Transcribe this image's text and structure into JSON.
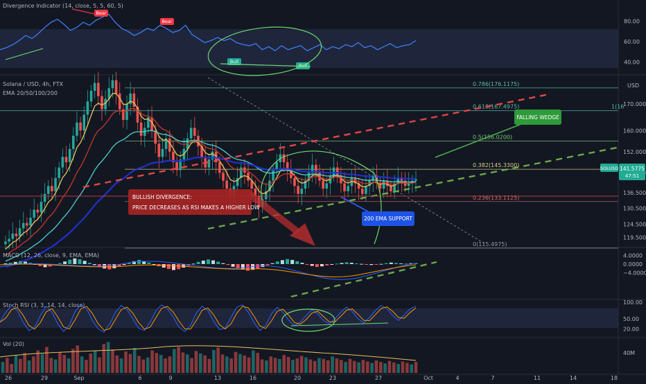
{
  "chart_data": [
    {
      "type": "line",
      "title": "Divergence Indicator (14, close, 5, 5, 60, 5)",
      "y_ticks": [
        "80.00",
        "60.00",
        "40.00"
      ],
      "ylim": [
        30,
        90
      ],
      "values": [
        52,
        54,
        57,
        61,
        66,
        63,
        68,
        74,
        79,
        82,
        77,
        71,
        74,
        79,
        76,
        81,
        84,
        87,
        79,
        73,
        70,
        66,
        69,
        73,
        71,
        76,
        73,
        69,
        71,
        76,
        67,
        63,
        59,
        61,
        64,
        61,
        63,
        59,
        57,
        56,
        58,
        52,
        55,
        51,
        56,
        52,
        54,
        56,
        51,
        54,
        57,
        52,
        55,
        53,
        57,
        55,
        59,
        54,
        56,
        52,
        55,
        58,
        54,
        56,
        57,
        61
      ],
      "markers": [
        {
          "label": "Bear",
          "color": "#f23645"
        },
        {
          "label": "Bear",
          "color": "#f23645"
        },
        {
          "label": "Bull",
          "color": "#22ab94"
        },
        {
          "label": "Bull",
          "color": "#22ab94"
        }
      ]
    },
    {
      "type": "candlestick",
      "title": "Solana / USD, 4h, FTX",
      "indicator": "EMA 20/50/100/200",
      "currency": "USD",
      "ylim": [
        116,
        180
      ],
      "y_ticks": [
        "170.0000",
        "160.0000",
        "152.0000",
        "144.0000",
        "136.5000",
        "130.5000",
        "124.5000",
        "119.5000"
      ],
      "fib_levels": [
        {
          "label": "0.786(176.1175)",
          "value": 176.1175
        },
        {
          "label": "0.618(167.4975)",
          "value": 167.4975
        },
        {
          "label": "0.5(156.0200)",
          "value": 156.02
        },
        {
          "label": "0.382(145.3300)",
          "value": 145.33
        },
        {
          "label": "0.236(133.1125)",
          "value": 133.1125
        },
        {
          "label": "0(115.4975)",
          "value": 115.4975
        }
      ],
      "fib_right_label": "1(16",
      "current_price": "141.5775",
      "countdown": "47:51",
      "symbol": "SOLUSD",
      "closes": [
        118,
        119,
        121,
        120,
        123,
        125,
        124,
        127,
        130,
        129,
        133,
        136,
        139,
        137,
        142,
        146,
        150,
        148,
        153,
        158,
        163,
        160,
        166,
        171,
        175,
        178,
        173,
        168,
        172,
        176,
        179,
        174,
        168,
        164,
        170,
        174,
        169,
        163,
        158,
        161,
        165,
        160,
        155,
        150,
        153,
        157,
        152,
        148,
        145,
        149,
        153,
        157,
        161,
        158,
        154,
        150,
        146,
        149,
        152,
        148,
        144,
        141,
        138,
        135,
        139,
        142,
        146,
        144,
        141,
        138,
        135,
        131,
        134,
        137,
        141,
        145,
        148,
        151,
        148,
        145,
        142,
        139,
        136,
        138,
        141,
        144,
        147,
        144,
        141,
        138,
        140,
        143,
        146,
        143,
        140,
        137,
        139,
        142,
        140,
        138,
        136,
        139,
        141,
        143,
        140,
        138,
        141,
        139,
        137,
        140,
        142,
        141,
        139,
        140,
        141,
        141.5775
      ],
      "ema_colors": [
        "#ebc25b",
        "#c0392b",
        "#4dd0c8",
        "#2132d6"
      ],
      "annotations": {
        "divergence_title": "BULLISH DIVERGENCE:",
        "divergence_text": "PRICE DECREASES AS RSI MAKES A HIGHER LOW",
        "wedge": "FALLING WEDGE",
        "ema_support": "200 EMA SUPPORT"
      }
    },
    {
      "type": "bar",
      "title": "MACD (12, 26, close, 9, EMA, EMA)",
      "y_ticks": [
        "4.0000",
        "0.0000",
        "−4.0000"
      ],
      "ylim": [
        -6,
        6
      ],
      "values": [
        0.3,
        0.6,
        1.0,
        1.4,
        1.1,
        0.6,
        -0.3,
        -0.9,
        -1.4,
        -1.1,
        -0.5,
        0.4,
        1.2,
        2.0,
        2.6,
        2.2,
        1.5,
        0.6,
        -0.4,
        -1.3,
        -2.0,
        -2.4,
        -1.9,
        -1.2,
        -0.4,
        0.5,
        1.3,
        1.9,
        1.4,
        0.7,
        -0.3,
        -1.0,
        -1.6,
        -2.2,
        -2.7,
        -2.3,
        -1.6,
        -0.8,
        0.2,
        1.0,
        1.6,
        2.1,
        1.7,
        1.1,
        0.4,
        -0.4,
        -1.2,
        -1.9,
        -2.5,
        -3.0,
        -2.6,
        -2.0,
        -1.3,
        -0.5,
        0.4,
        1.2,
        1.8,
        2.3,
        1.9,
        1.3,
        0.6,
        -0.2,
        -0.8,
        -1.3,
        -1.0,
        -0.6,
        -0.2,
        0.2,
        0.5,
        0.8,
        0.6,
        0.3,
        0.1,
        -0.2,
        -0.4,
        -0.3,
        0.1,
        0.4,
        0.7,
        0.5,
        0.3,
        0.2,
        0.4,
        0.5
      ]
    },
    {
      "type": "line",
      "title": "Stoch RSI (3, 3, 14, 14, close)",
      "y_ticks": [
        "100.00",
        "50.00",
        "20.00"
      ],
      "ylim": [
        0,
        100
      ],
      "values": [
        40,
        70,
        90,
        75,
        40,
        15,
        25,
        60,
        88,
        70,
        35,
        12,
        30,
        72,
        92,
        80,
        45,
        20,
        10,
        35,
        70,
        90,
        78,
        50,
        22,
        15,
        40,
        75,
        92,
        80,
        55,
        25,
        12,
        30,
        68,
        88,
        75,
        42,
        18,
        22,
        55,
        85,
        92,
        70,
        38,
        15,
        30,
        65,
        85,
        70,
        45,
        30,
        40,
        60,
        78,
        65,
        45,
        35,
        50,
        70,
        85,
        72,
        50,
        38,
        55,
        75,
        90,
        80,
        60,
        45,
        62,
        80,
        88
      ]
    },
    {
      "type": "bar",
      "title": "Vol (20)",
      "y_ticks": [
        "40M"
      ],
      "values": [
        22,
        30,
        18,
        35,
        28,
        40,
        25,
        33,
        45,
        38,
        52,
        30,
        27,
        41,
        36,
        29,
        48,
        55,
        33,
        26,
        39,
        44,
        31,
        58,
        62,
        47,
        35,
        29,
        43,
        38,
        50,
        34,
        27,
        31,
        45,
        40,
        36,
        29,
        33,
        48,
        52,
        41,
        37,
        30,
        44,
        39,
        35,
        28,
        46,
        51,
        37,
        33,
        29,
        42,
        38,
        35,
        31,
        45,
        40,
        27,
        25,
        33,
        30,
        28,
        36,
        32,
        26,
        29,
        34,
        31,
        27,
        24,
        30,
        28,
        25,
        33,
        29,
        26,
        22,
        28,
        24,
        21,
        26,
        23,
        20,
        25,
        22,
        19,
        24,
        21,
        18,
        23,
        20,
        17,
        22
      ]
    }
  ],
  "x_axis_labels": [
    "26",
    "29",
    "Sep",
    "6",
    "9",
    "13",
    "16",
    "20",
    "23",
    "27",
    "Oct",
    "4",
    "7",
    "11",
    "14",
    "18"
  ]
}
